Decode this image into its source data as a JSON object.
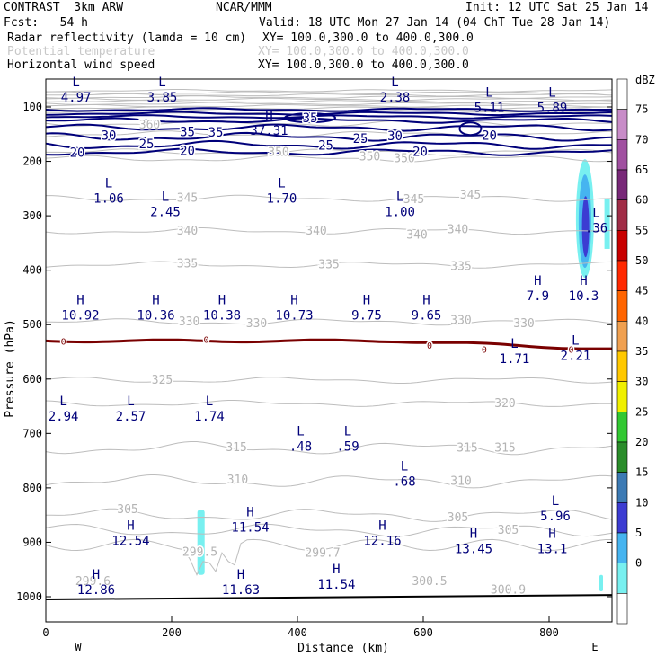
{
  "header": {
    "project": "CONTRAST  3km ARW",
    "center": "NCAR/MMM",
    "init": "Init: 12 UTC Sat 25 Jan 14",
    "fcst": "Fcst:   54 h",
    "valid": "Valid: 18 UTC Mon 27 Jan 14 (04 ChT Tue 28 Jan 14)",
    "fields": [
      {
        "name": "Radar reflectivity (lamda = 10 cm)",
        "xy": "XY= 100.0,300.0 to 400.0,300.0",
        "color": "#000000"
      },
      {
        "name": "Potential temperature",
        "xy": "XY= 100.0,300.0 to 400.0,300.0",
        "color": "#c8c8c8"
      },
      {
        "name": "Horizontal wind speed",
        "xy": "XY= 100.0,300.0 to 400.0,300.0",
        "color": "#000000"
      }
    ]
  },
  "chart_data": {
    "type": "cross-section contour",
    "xlabel": "Distance (km)",
    "ylabel": "Pressure (hPa)",
    "xlim": [
      0,
      900
    ],
    "ylim": [
      1050,
      60
    ],
    "x_ticks": [
      0,
      200,
      400,
      600,
      800
    ],
    "y_ticks": [
      100,
      200,
      300,
      400,
      500,
      600,
      700,
      800,
      900,
      1000
    ],
    "x_end_labels": {
      "left": "W",
      "right": "E"
    },
    "colorbar": {
      "title": "dBZ",
      "levels": [
        "75",
        "70",
        "65",
        "60",
        "55",
        "50",
        "45",
        "40",
        "35",
        "30",
        "25",
        "20",
        "15",
        "10",
        "5",
        "0"
      ],
      "colors": [
        "#ffffff",
        "#c88cc8",
        "#a050a0",
        "#782878",
        "#a02c46",
        "#c80000",
        "#ff2800",
        "#ff6400",
        "#f0a050",
        "#ffc800",
        "#f0f000",
        "#32c832",
        "#2a8c2a",
        "#3c7ab4",
        "#3c3cd2",
        "#46b4f0",
        "#78f0f0",
        "#ffffff"
      ]
    },
    "theta_labels": [
      {
        "v": "360",
        "x": 165,
        "p": 133
      },
      {
        "v": "350",
        "x": 370,
        "p": 183
      },
      {
        "v": "350",
        "x": 515,
        "p": 192
      },
      {
        "v": "350",
        "x": 570,
        "p": 195
      },
      {
        "v": "345",
        "x": 225,
        "p": 268
      },
      {
        "v": "345",
        "x": 585,
        "p": 270
      },
      {
        "v": "345",
        "x": 675,
        "p": 262
      },
      {
        "v": "340",
        "x": 225,
        "p": 328
      },
      {
        "v": "340",
        "x": 430,
        "p": 328
      },
      {
        "v": "340",
        "x": 590,
        "p": 335
      },
      {
        "v": "340",
        "x": 655,
        "p": 325
      },
      {
        "v": "335",
        "x": 225,
        "p": 388
      },
      {
        "v": "335",
        "x": 450,
        "p": 390
      },
      {
        "v": "335",
        "x": 660,
        "p": 393
      },
      {
        "v": "330",
        "x": 228,
        "p": 495
      },
      {
        "v": "330",
        "x": 335,
        "p": 498
      },
      {
        "v": "330",
        "x": 660,
        "p": 492
      },
      {
        "v": "330",
        "x": 760,
        "p": 498
      },
      {
        "v": "325",
        "x": 185,
        "p": 602
      },
      {
        "v": "320",
        "x": 730,
        "p": 645
      },
      {
        "v": "315",
        "x": 303,
        "p": 726
      },
      {
        "v": "315",
        "x": 670,
        "p": 727
      },
      {
        "v": "315",
        "x": 730,
        "p": 727
      },
      {
        "v": "310",
        "x": 305,
        "p": 785
      },
      {
        "v": "310",
        "x": 660,
        "p": 788
      },
      {
        "v": "305",
        "x": 130,
        "p": 840
      },
      {
        "v": "305",
        "x": 655,
        "p": 855
      },
      {
        "v": "305",
        "x": 735,
        "p": 878
      },
      {
        "v": "299.5",
        "x": 245,
        "p": 918
      },
      {
        "v": "299.7",
        "x": 440,
        "p": 920
      },
      {
        "v": "300.5",
        "x": 610,
        "p": 972
      },
      {
        "v": "300.9",
        "x": 735,
        "p": 988
      },
      {
        "v": "299.6",
        "x": 75,
        "p": 972
      }
    ],
    "wind_labels": [
      {
        "v": "35",
        "x": 420,
        "p": 120
      },
      {
        "v": "35",
        "x": 225,
        "p": 145
      },
      {
        "v": "35",
        "x": 270,
        "p": 146
      },
      {
        "v": "30",
        "x": 100,
        "p": 152
      },
      {
        "v": "30",
        "x": 555,
        "p": 153
      },
      {
        "v": "25",
        "x": 160,
        "p": 168
      },
      {
        "v": "25",
        "x": 445,
        "p": 170
      },
      {
        "v": "25",
        "x": 500,
        "p": 158
      },
      {
        "v": "20",
        "x": 50,
        "p": 183
      },
      {
        "v": "20",
        "x": 225,
        "p": 180
      },
      {
        "v": "20",
        "x": 595,
        "p": 182
      },
      {
        "v": "20",
        "x": 705,
        "p": 152
      }
    ],
    "hl_labels": [
      {
        "t": "L",
        "v": "4.97",
        "x": 48,
        "p": 82
      },
      {
        "t": "L",
        "v": "3.85",
        "x": 185,
        "p": 82
      },
      {
        "t": "L",
        "v": "2.38",
        "x": 555,
        "p": 82
      },
      {
        "t": "L",
        "v": "5.11",
        "x": 705,
        "p": 101
      },
      {
        "t": "L",
        "v": "5.89",
        "x": 805,
        "p": 101
      },
      {
        "t": "H",
        "v": "37.31",
        "x": 355,
        "p": 143
      },
      {
        "t": "L",
        "v": "1.06",
        "x": 100,
        "p": 268
      },
      {
        "t": "L",
        "v": "2.45",
        "x": 190,
        "p": 292
      },
      {
        "t": "L",
        "v": "1.70",
        "x": 375,
        "p": 268
      },
      {
        "t": "L",
        "v": "1.00",
        "x": 563,
        "p": 292
      },
      {
        "t": "L",
        "v": ".36",
        "x": 875,
        "p": 322
      },
      {
        "t": "H",
        "v": "7.9",
        "x": 782,
        "p": 447
      },
      {
        "t": "H",
        "v": "10.3",
        "x": 855,
        "p": 447
      },
      {
        "t": "H",
        "v": "10.92",
        "x": 55,
        "p": 482
      },
      {
        "t": "H",
        "v": "10.36",
        "x": 175,
        "p": 482
      },
      {
        "t": "H",
        "v": "10.38",
        "x": 280,
        "p": 482
      },
      {
        "t": "H",
        "v": "10.73",
        "x": 395,
        "p": 482
      },
      {
        "t": "H",
        "v": "9.75",
        "x": 510,
        "p": 482
      },
      {
        "t": "H",
        "v": "9.65",
        "x": 605,
        "p": 482
      },
      {
        "t": "L",
        "v": "1.71",
        "x": 745,
        "p": 562
      },
      {
        "t": "L",
        "v": "2.21",
        "x": 842,
        "p": 557
      },
      {
        "t": "L",
        "v": "2.94",
        "x": 28,
        "p": 668
      },
      {
        "t": "L",
        "v": "2.57",
        "x": 135,
        "p": 668
      },
      {
        "t": "L",
        "v": "1.74",
        "x": 260,
        "p": 668
      },
      {
        "t": "L",
        "v": ".48",
        "x": 405,
        "p": 723
      },
      {
        "t": "L",
        "v": ".59",
        "x": 480,
        "p": 723
      },
      {
        "t": "L",
        "v": ".68",
        "x": 570,
        "p": 788
      },
      {
        "t": "L",
        "v": "5.96",
        "x": 810,
        "p": 851
      },
      {
        "t": "H",
        "v": "11.54",
        "x": 325,
        "p": 872
      },
      {
        "t": "H",
        "v": "12.54",
        "x": 135,
        "p": 897
      },
      {
        "t": "H",
        "v": "12.16",
        "x": 535,
        "p": 897
      },
      {
        "t": "H",
        "v": "13.45",
        "x": 680,
        "p": 912
      },
      {
        "t": "H",
        "v": "13.1",
        "x": 805,
        "p": 912
      },
      {
        "t": "H",
        "v": "12.86",
        "x": 80,
        "p": 987
      },
      {
        "t": "H",
        "v": "11.63",
        "x": 310,
        "p": 987
      },
      {
        "t": "H",
        "v": "11.54",
        "x": 462,
        "p": 977
      }
    ],
    "zero_labels": [
      {
        "v": "0",
        "x": 28,
        "p": 530
      },
      {
        "v": "0",
        "x": 255,
        "p": 527
      },
      {
        "v": "0",
        "x": 610,
        "p": 538
      },
      {
        "v": "0",
        "x": 697,
        "p": 545
      },
      {
        "v": "0",
        "x": 835,
        "p": 545
      }
    ]
  }
}
